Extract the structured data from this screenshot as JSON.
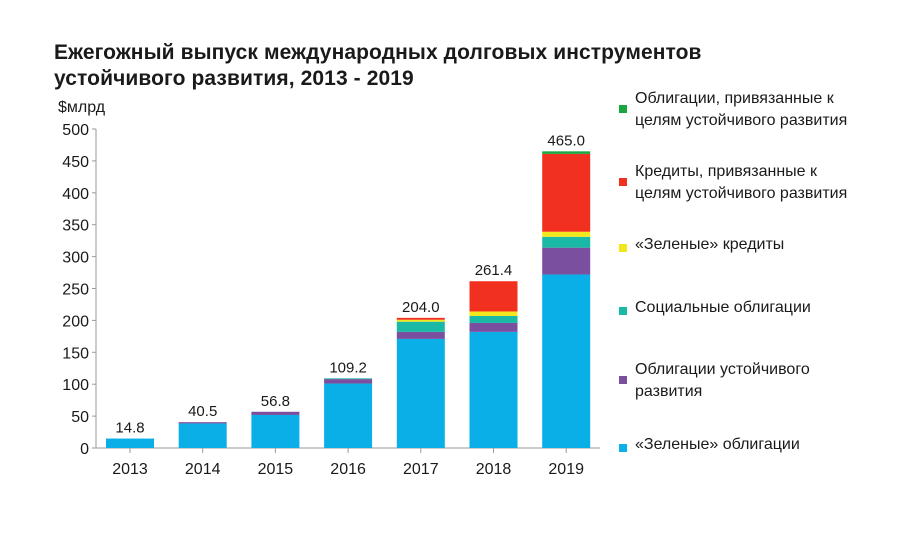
{
  "title": {
    "line1": "Ежегожный выпуск  международных долговых инструментов",
    "line2": "устойчивого развития, 2013 - 2019"
  },
  "colors": {
    "green_bonds": "#0aafe8",
    "sustainability_bonds": "#7b4fa0",
    "social_bonds": "#1ab9a6",
    "green_loans": "#f2e61c",
    "sdg_loans": "#f2301f",
    "sdg_bonds": "#1aa640",
    "axis": "#9a9a9a",
    "text": "#1a1a1a"
  },
  "legend": [
    {
      "series": "sdg_bonds",
      "lines": [
        "Облигации, привязанные к",
        "целям устойчивого развития"
      ]
    },
    {
      "series": "sdg_loans",
      "lines": [
        "Кредиты, привязанные к",
        "целям устойчивого развития"
      ]
    },
    {
      "series": "green_loans",
      "lines": [
        "«Зеленые» кредиты"
      ]
    },
    {
      "series": "social_bonds",
      "lines": [
        "Социальные облигации"
      ]
    },
    {
      "series": "sustainability_bonds",
      "lines": [
        "Облигации устойчивого",
        "развития"
      ]
    },
    {
      "series": "green_bonds",
      "lines": [
        "«Зеленые» облигации"
      ]
    }
  ],
  "chart_data": {
    "type": "bar",
    "stacked": true,
    "title": "Ежегожный выпуск  международных долговых инструментов устойчивого развития, 2013 - 2019",
    "ylabel": "$млрд",
    "xlabel": "",
    "ylim": [
      0,
      500
    ],
    "yticks": [
      0,
      50,
      100,
      150,
      200,
      250,
      300,
      350,
      400,
      450,
      500
    ],
    "categories": [
      "2013",
      "2014",
      "2015",
      "2016",
      "2017",
      "2018",
      "2019"
    ],
    "totals": [
      14.8,
      40.5,
      56.8,
      109.2,
      204.0,
      261.4,
      465.0
    ],
    "total_labels": [
      "14.8",
      "40.5",
      "56.8",
      "109.2",
      "204.0",
      "261.4",
      "465.0"
    ],
    "series": [
      {
        "key": "green_bonds",
        "name": "«Зеленые» облигации",
        "values": [
          14.8,
          38.5,
          51.8,
          101.0,
          171.0,
          182.0,
          272.0
        ]
      },
      {
        "key": "sustainability_bonds",
        "name": "Облигации устойчивого развития",
        "values": [
          0,
          2.0,
          5.0,
          7.0,
          11.0,
          14.0,
          42.0
        ]
      },
      {
        "key": "social_bonds",
        "name": "Социальные облигации",
        "values": [
          0,
          0,
          0,
          1.2,
          16.0,
          11.0,
          17.0
        ]
      },
      {
        "key": "green_loans",
        "name": "«Зеленые» кредиты",
        "values": [
          0,
          0,
          0,
          0,
          3.0,
          7.0,
          8.0
        ]
      },
      {
        "key": "sdg_loans",
        "name": "Кредиты, привязанные к целям устойчивого развития",
        "values": [
          0,
          0,
          0,
          0,
          3.0,
          47.4,
          122.0
        ]
      },
      {
        "key": "sdg_bonds",
        "name": "Облигации, привязанные к целям устойчивого развития",
        "values": [
          0,
          0,
          0,
          0,
          0,
          0,
          4.0
        ]
      }
    ]
  }
}
